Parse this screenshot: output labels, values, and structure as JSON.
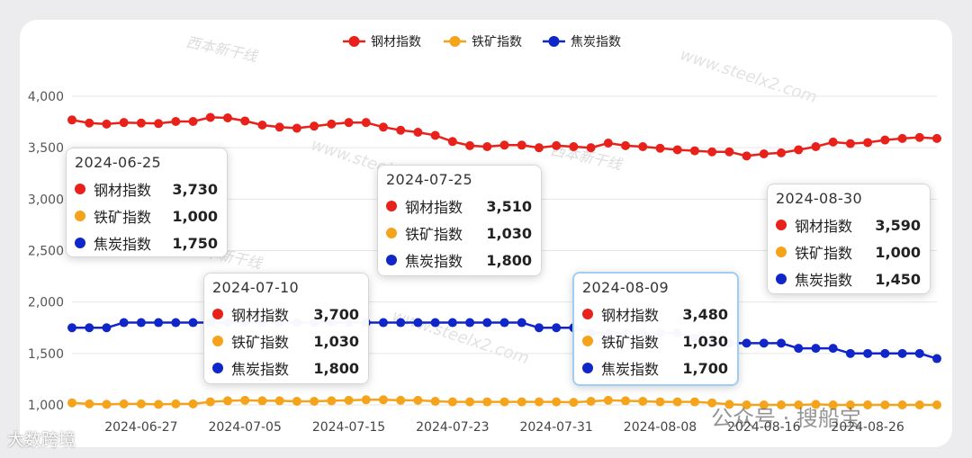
{
  "chart_data": {
    "type": "line",
    "legend_position": "top-center",
    "grid": true,
    "ylim": [
      1000,
      4000
    ],
    "yticks": [
      "1,000",
      "1,500",
      "2,000",
      "2,500",
      "3,000",
      "3,500",
      "4,000"
    ],
    "xticks": [
      "2024-06-27",
      "2024-07-05",
      "2024-07-15",
      "2024-07-23",
      "2024-07-31",
      "2024-08-08",
      "2024-08-16",
      "2024-08-26"
    ],
    "series": [
      {
        "name": "钢材指数",
        "color": "#e8211a",
        "values": [
          3770,
          3740,
          3730,
          3745,
          3740,
          3735,
          3755,
          3755,
          3795,
          3790,
          3760,
          3720,
          3700,
          3690,
          3710,
          3730,
          3745,
          3745,
          3700,
          3670,
          3650,
          3620,
          3560,
          3520,
          3510,
          3525,
          3525,
          3500,
          3520,
          3510,
          3500,
          3545,
          3520,
          3510,
          3495,
          3480,
          3470,
          3460,
          3460,
          3420,
          3440,
          3450,
          3480,
          3510,
          3555,
          3540,
          3550,
          3575,
          3590,
          3600,
          3590
        ]
      },
      {
        "name": "铁矿指数",
        "color": "#f5a31a",
        "values": [
          1020,
          1010,
          1005,
          1010,
          1010,
          1005,
          1010,
          1010,
          1030,
          1040,
          1045,
          1040,
          1040,
          1035,
          1035,
          1040,
          1045,
          1050,
          1050,
          1045,
          1045,
          1035,
          1030,
          1030,
          1030,
          1030,
          1030,
          1030,
          1030,
          1025,
          1035,
          1045,
          1040,
          1035,
          1030,
          1030,
          1030,
          1020,
          1005,
          1000,
          1000,
          1000,
          1000,
          1005,
          1000,
          1000,
          1000,
          1000,
          1000,
          1000,
          1000
        ]
      },
      {
        "name": "焦炭指数",
        "color": "#1026c8",
        "values": [
          1750,
          1750,
          1750,
          1800,
          1800,
          1800,
          1800,
          1800,
          1800,
          1800,
          1800,
          1800,
          1800,
          1800,
          1800,
          1800,
          1800,
          1800,
          1800,
          1800,
          1800,
          1800,
          1800,
          1800,
          1800,
          1800,
          1800,
          1750,
          1750,
          1750,
          1700,
          1700,
          1700,
          1700,
          1700,
          1700,
          1650,
          1600,
          1600,
          1600,
          1600,
          1600,
          1550,
          1550,
          1550,
          1500,
          1500,
          1500,
          1500,
          1500,
          1450
        ]
      }
    ]
  },
  "tooltips": [
    {
      "date": "2024-06-25",
      "rows": [
        {
          "name": "钢材指数",
          "value": "3,730"
        },
        {
          "name": "铁矿指数",
          "value": "1,000"
        },
        {
          "name": "焦炭指数",
          "value": "1,750"
        }
      ]
    },
    {
      "date": "2024-07-10",
      "rows": [
        {
          "name": "钢材指数",
          "value": "3,700"
        },
        {
          "name": "铁矿指数",
          "value": "1,030"
        },
        {
          "name": "焦炭指数",
          "value": "1,800"
        }
      ]
    },
    {
      "date": "2024-07-25",
      "rows": [
        {
          "name": "钢材指数",
          "value": "3,510"
        },
        {
          "name": "铁矿指数",
          "value": "1,030"
        },
        {
          "name": "焦炭指数",
          "value": "1,800"
        }
      ]
    },
    {
      "date": "2024-08-09",
      "rows": [
        {
          "name": "钢材指数",
          "value": "3,480"
        },
        {
          "name": "铁矿指数",
          "value": "1,030"
        },
        {
          "name": "焦炭指数",
          "value": "1,700"
        }
      ]
    },
    {
      "date": "2024-08-30",
      "rows": [
        {
          "name": "钢材指数",
          "value": "3,590"
        },
        {
          "name": "铁矿指数",
          "value": "1,000"
        },
        {
          "name": "焦炭指数",
          "value": "1,450"
        }
      ]
    }
  ],
  "watermarks": {
    "site": "www.steelx2.com",
    "logo": "西本新干线",
    "bottom_left": "大数跨境",
    "bottom_right": "公众号 · 搜船宝"
  }
}
